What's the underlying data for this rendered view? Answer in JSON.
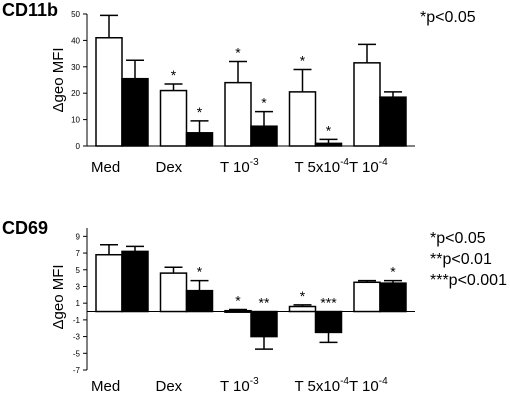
{
  "chart_data": [
    {
      "type": "bar",
      "title": "CD11b",
      "ylabel": "Δgeo MFI",
      "ylim": [
        0,
        50
      ],
      "yticks": [
        0,
        10,
        20,
        30,
        40,
        50
      ],
      "grid": false,
      "categories": [
        {
          "text": "Med",
          "sup": ""
        },
        {
          "text": "Dex",
          "sup": ""
        },
        {
          "text": "T 10",
          "sup": "-3"
        },
        {
          "text": "T 5x10",
          "sup": "-4"
        },
        {
          "text": "T 10",
          "sup": "-4"
        }
      ],
      "series": [
        {
          "color": "#ffffff",
          "values": [
            41,
            21,
            24,
            20.5,
            31.5
          ],
          "errors": [
            8.5,
            2.5,
            8,
            8.5,
            7
          ],
          "marks": [
            "",
            "*",
            "*",
            "*",
            ""
          ]
        },
        {
          "color": "#000000",
          "values": [
            25.5,
            5,
            7.5,
            1,
            18.5
          ],
          "errors": [
            7,
            4.5,
            5.5,
            1.5,
            2
          ],
          "marks": [
            "",
            "*",
            "*",
            "*",
            ""
          ]
        }
      ],
      "significance": [
        "*p<0.05"
      ]
    },
    {
      "type": "bar",
      "title": "CD69",
      "ylabel": "Δgeo MFI",
      "ylim": [
        -7,
        10
      ],
      "yticks": [
        -7,
        -5,
        -3,
        -1,
        1,
        3,
        5,
        7,
        9
      ],
      "grid": false,
      "categories": [
        {
          "text": "Med",
          "sup": ""
        },
        {
          "text": "Dex",
          "sup": ""
        },
        {
          "text": "T 10",
          "sup": "-3"
        },
        {
          "text": "T 5x10",
          "sup": "-4"
        },
        {
          "text": "T 10",
          "sup": "-4"
        }
      ],
      "series": [
        {
          "color": "#ffffff",
          "values": [
            6.8,
            4.6,
            0.1,
            0.6,
            3.5
          ],
          "errors": [
            1.2,
            0.7,
            0.15,
            0.2,
            0.2
          ],
          "marks": [
            "",
            "",
            "*",
            "*",
            ""
          ]
        },
        {
          "color": "#000000",
          "values": [
            7.2,
            2.5,
            -3,
            -2.5,
            3.4
          ],
          "errors": [
            0.6,
            1.2,
            1.5,
            1.2,
            0.3
          ],
          "marks": [
            "",
            "*",
            "**",
            "***",
            "*"
          ]
        }
      ],
      "significance": [
        "*p<0.05",
        "**p<0.01",
        "***p<0.001"
      ]
    }
  ]
}
